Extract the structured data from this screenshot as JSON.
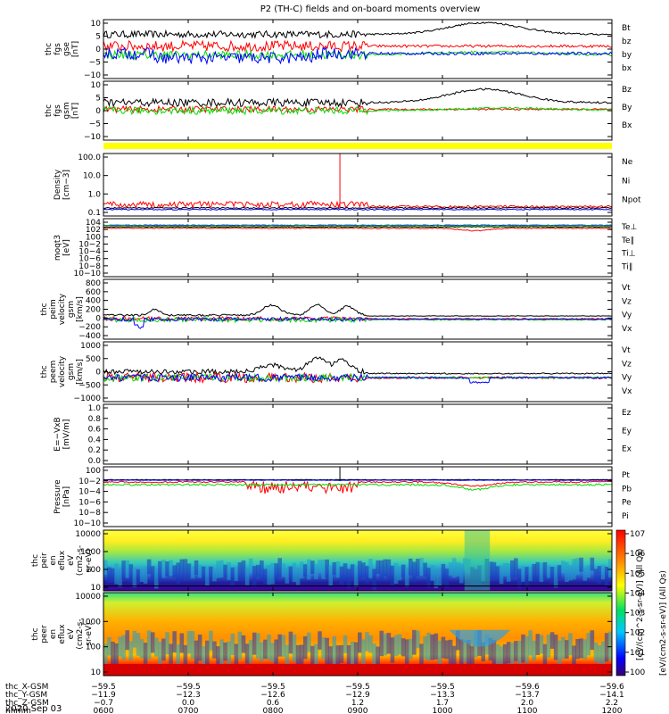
{
  "title": "P2 (TH-C) fields and on-board moments overview",
  "date": "2020 Sep 03",
  "colors": {
    "black": "#000000",
    "red": "#ff0000",
    "green": "#00dd00",
    "blue": "#0000ff",
    "yellow": "#ffff00"
  },
  "chart_data": [
    {
      "type": "line",
      "id": "fgs_gse",
      "ylabel": [
        "thc",
        "fgs",
        "gse",
        "[nT]"
      ],
      "ylim": [
        -10,
        10
      ],
      "yticks": [
        "10",
        "5",
        "0",
        "−5",
        "−10"
      ],
      "legend": [
        {
          "name": "Bt",
          "color": "black"
        },
        {
          "name": "bz",
          "color": "red"
        },
        {
          "name": "by",
          "color": "green"
        },
        {
          "name": "bx",
          "color": "blue"
        }
      ]
    },
    {
      "type": "line",
      "id": "fgs_gsm",
      "ylabel": [
        "thc",
        "fgs",
        "gsm",
        "[nT]"
      ],
      "ylim": [
        -12,
        10
      ],
      "yticks": [
        "10",
        "5",
        "0",
        "−5",
        "−10"
      ],
      "legend": [
        {
          "name": "Bz",
          "color": "red"
        },
        {
          "name": "By",
          "color": "green"
        },
        {
          "name": "Bx",
          "color": "black"
        }
      ]
    },
    {
      "type": "line",
      "id": "density",
      "ylabel": [
        "Density",
        "[cm−3]"
      ],
      "scale": "log",
      "ylim": [
        0.07,
        200
      ],
      "yticks": [
        "100.0",
        "10.0",
        "1.0",
        "0.1"
      ],
      "legend": [
        {
          "name": "Ne",
          "color": "red"
        },
        {
          "name": "Ni",
          "color": "black"
        },
        {
          "name": "Npot",
          "color": "blue"
        }
      ]
    },
    {
      "type": "line",
      "id": "temperature",
      "ylabel": [
        "moqt3",
        "[eV]"
      ],
      "scale": "log",
      "ylim": [
        -11,
        6
      ],
      "yticks": [
        "104",
        "102",
        "100",
        "10−2",
        "10−4",
        "10−6",
        "10−8",
        "10−10"
      ],
      "legend": [
        {
          "name": "Te⊥",
          "color": "red"
        },
        {
          "name": "Te∥",
          "color": "black"
        },
        {
          "name": "Ti⊥",
          "color": "blue"
        },
        {
          "name": "Ti∥",
          "color": "green"
        }
      ]
    },
    {
      "type": "line",
      "id": "peim_velocity",
      "ylabel": [
        "thc",
        "peim",
        "velocity",
        "gsm",
        "[km/s]"
      ],
      "ylim": [
        -400,
        800
      ],
      "yticks": [
        "800",
        "600",
        "400",
        "200",
        "0",
        "−200",
        "−400"
      ],
      "legend": [
        {
          "name": "Vt",
          "color": "black"
        },
        {
          "name": "Vz",
          "color": "red"
        },
        {
          "name": "Vy",
          "color": "green"
        },
        {
          "name": "Vx",
          "color": "blue"
        }
      ]
    },
    {
      "type": "line",
      "id": "peem_velocity",
      "ylabel": [
        "thc",
        "peem",
        "velocity",
        "gsm",
        "[km/s]"
      ],
      "ylim": [
        -1000,
        1500
      ],
      "yticks": [
        "1000",
        "500",
        "0",
        "−500",
        "−1000"
      ],
      "legend": [
        {
          "name": "Vt",
          "color": "black"
        },
        {
          "name": "Vz",
          "color": "red"
        },
        {
          "name": "Vy",
          "color": "green"
        },
        {
          "name": "Vx",
          "color": "blue"
        }
      ]
    },
    {
      "type": "line",
      "id": "efield",
      "ylabel": [
        "E=−VxB",
        "[mV/m]"
      ],
      "ylim": [
        0,
        1
      ],
      "yticks": [
        "1.0",
        "0.8",
        "0.6",
        "0.4",
        "0.2",
        "0.0"
      ],
      "legend": [
        {
          "name": "Ez",
          "color": "red"
        },
        {
          "name": "Ey",
          "color": "green"
        },
        {
          "name": "Ex",
          "color": "blue"
        }
      ]
    },
    {
      "type": "line",
      "id": "pressure",
      "ylabel": [
        "Pressure",
        "[nPa]"
      ],
      "scale": "log",
      "ylim": [
        -11,
        1
      ],
      "yticks": [
        "100",
        "10−2",
        "10−4",
        "10−6",
        "10−8",
        "10−10"
      ],
      "legend": [
        {
          "name": "Pt",
          "color": "black"
        },
        {
          "name": "Pb",
          "color": "red"
        },
        {
          "name": "Pe",
          "color": "green"
        },
        {
          "name": "Pi",
          "color": "blue"
        }
      ]
    },
    {
      "type": "heatmap",
      "id": "peir_eflux",
      "ylabel": [
        "thc",
        "peir",
        "en",
        "eflux",
        "eV",
        "(cm2-s-",
        "sr-eV)"
      ],
      "scale": "log",
      "yticks": [
        "10000",
        "1000",
        "100",
        "10"
      ]
    },
    {
      "type": "heatmap",
      "id": "peer_eflux",
      "ylabel": [
        "thc",
        "peer",
        "en",
        "eflux",
        "eV",
        "(cm2-s-",
        "sr-eV)"
      ],
      "scale": "log",
      "yticks": [
        "10000",
        "1000",
        "100",
        "10"
      ]
    }
  ],
  "colorbar": {
    "ticks": [
      "107",
      "106",
      "105",
      "104",
      "103",
      "102",
      "101",
      "100"
    ],
    "label": "[eV/(cm2-s-sr-eV)] (All Qs)",
    "overlay": "[eV/(cm^2-s-sr-eV)] (All Qs)"
  },
  "x_axis": {
    "ticks": [
      "0600",
      "0700",
      "0800",
      "0900",
      "1000",
      "1100",
      "1200"
    ],
    "rows": [
      {
        "label": "thc_X-GSM",
        "values": [
          "−59.5",
          "−59.5",
          "−59.5",
          "−59.5",
          "−59.5",
          "−59.6",
          "−59.6"
        ]
      },
      {
        "label": "thc_Y-GSM",
        "values": [
          "−11.9",
          "−12.3",
          "−12.6",
          "−12.9",
          "−13.3",
          "−13.7",
          "−14.1"
        ]
      },
      {
        "label": "thc_Z-GSM",
        "values": [
          "−0.7",
          "0.0",
          "0.6",
          "1.2",
          "1.7",
          "2.0",
          "2.2"
        ]
      },
      {
        "label": "hhmm",
        "values": [
          "0600",
          "0700",
          "0800",
          "0900",
          "1000",
          "1100",
          "1200"
        ]
      }
    ]
  }
}
